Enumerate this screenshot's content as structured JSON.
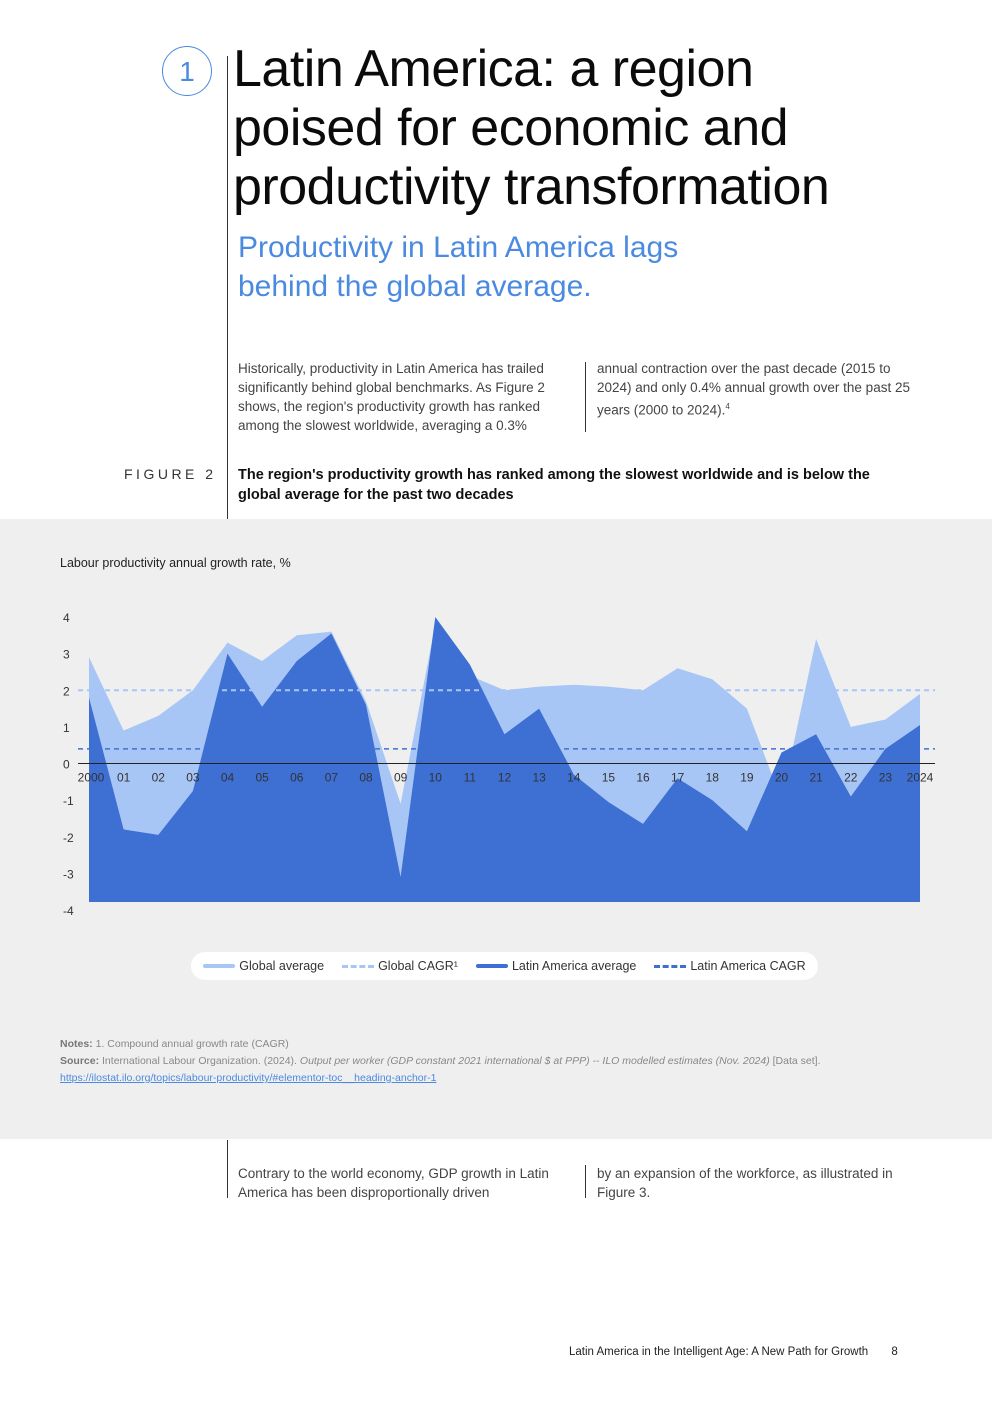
{
  "header": {
    "chapter_number": "1",
    "title_lines": [
      "Latin America: a region",
      "poised for economic and",
      "productivity transformation"
    ],
    "subtitle_lines": [
      "Productivity in Latin America lags",
      "behind the global average."
    ]
  },
  "intro": {
    "col1": "Historically, productivity in Latin America has trailed significantly behind global benchmarks. As Figure 2 shows, the region's productivity growth has ranked among the slowest worldwide, averaging a 0.3%",
    "col2_text": "annual contraction over the past decade (2015 to 2024) and only 0.4% annual growth over the past 25 years (2000 to 2024).",
    "col2_sup": "4"
  },
  "figure": {
    "label": "FIGURE 2",
    "title": "The region's productivity growth has ranked among the slowest worldwide and is below the global average for the past two decades"
  },
  "colors": {
    "global": "#a8c6f5",
    "latam": "#3e6fd3",
    "global_cagr_line": "#a8c6f5",
    "latam_cagr_line": "#3e6fd3"
  },
  "chart_data": {
    "type": "area",
    "title": "Labour productivity annual growth rate, %",
    "categories": [
      "2000",
      "01",
      "02",
      "03",
      "04",
      "05",
      "06",
      "07",
      "08",
      "09",
      "10",
      "11",
      "12",
      "13",
      "14",
      "15",
      "16",
      "17",
      "18",
      "19",
      "20",
      "21",
      "22",
      "23",
      "2024"
    ],
    "series": [
      {
        "name": "Global average",
        "values": [
          2.9,
          0.9,
          1.3,
          2.0,
          3.3,
          2.8,
          3.5,
          3.6,
          1.7,
          -1.1,
          3.8,
          2.4,
          2.0,
          2.1,
          2.15,
          2.1,
          2.0,
          2.6,
          2.3,
          1.5,
          -1.0,
          3.4,
          1.0,
          1.2,
          1.9
        ]
      },
      {
        "name": "Latin America average",
        "values": [
          1.8,
          -1.8,
          -1.95,
          -0.75,
          3.0,
          1.55,
          2.8,
          3.55,
          1.6,
          -3.1,
          4.0,
          2.7,
          0.8,
          1.5,
          -0.3,
          -1.05,
          -1.65,
          -0.4,
          -1.0,
          -1.85,
          0.3,
          0.8,
          -0.9,
          0.4,
          1.05
        ]
      }
    ],
    "reference_lines": [
      {
        "name": "Global CAGR¹",
        "value": 2.0
      },
      {
        "name": "Latin America CAGR",
        "value": 0.4
      }
    ],
    "ylim": [
      -4,
      4
    ],
    "yticks": [
      "4",
      "3",
      "2",
      "1",
      "0",
      "-1",
      "-2",
      "-3",
      "-4"
    ],
    "xlabel": "",
    "ylabel": "",
    "legend": [
      "Global average",
      "Global CAGR¹",
      "Latin America average",
      "Latin America CAGR"
    ]
  },
  "notes": {
    "notes_label": "Notes:",
    "notes_text": "1. Compound annual growth rate (CAGR)",
    "source_label": "Source:",
    "source_plain": "International Labour Organization. (2024).",
    "source_italic": "Output per worker (GDP constant 2021 international $ at PPP) -- ILO modelled estimates (Nov. 2024)",
    "source_tail": "[Data set].",
    "source_link": "https://ilostat.ilo.org/topics/labour-productivity/#elementor-toc__heading-anchor-1"
  },
  "after": {
    "col1": "Contrary to the world economy, GDP growth in Latin America has been disproportionally driven",
    "col2": "by an expansion of the workforce, as illustrated in Figure 3."
  },
  "footer": {
    "report_title_bold": "Latin America in the Intelligent Age:",
    "report_title_rest": "A New Path for Growth",
    "page_number": "8"
  }
}
